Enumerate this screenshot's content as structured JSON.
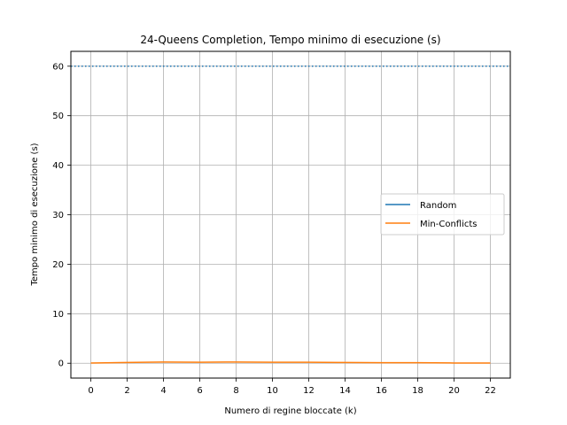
{
  "chart_data": {
    "type": "line",
    "title": "24-Queens Completion, Tempo minimo di esecuzione (s)",
    "xlabel": "Numero di regine bloccate (k)",
    "ylabel": "Tempo minimo di esecuzione (s)",
    "xlim": [
      -1.1,
      23.1
    ],
    "ylim": [
      -3,
      63
    ],
    "xticks": [
      0,
      2,
      4,
      6,
      8,
      10,
      12,
      14,
      16,
      18,
      20,
      22
    ],
    "yticks": [
      0,
      10,
      20,
      30,
      40,
      50,
      60
    ],
    "grid": true,
    "legend_position": "center-right",
    "x": [
      0,
      2,
      4,
      6,
      8,
      10,
      12,
      14,
      16,
      18,
      20,
      22
    ],
    "series": [
      {
        "name": "Random",
        "color": "#1f77b4",
        "values": [
          60,
          60,
          60,
          60,
          60,
          60,
          60,
          60,
          60,
          60,
          60,
          60
        ],
        "line_style": "dotted"
      },
      {
        "name": "Min-Conflicts",
        "color": "#ff7f0e",
        "values": [
          0.05,
          0.15,
          0.25,
          0.2,
          0.25,
          0.2,
          0.2,
          0.15,
          0.1,
          0.1,
          0.05,
          0.05
        ],
        "line_style": "solid"
      }
    ]
  }
}
